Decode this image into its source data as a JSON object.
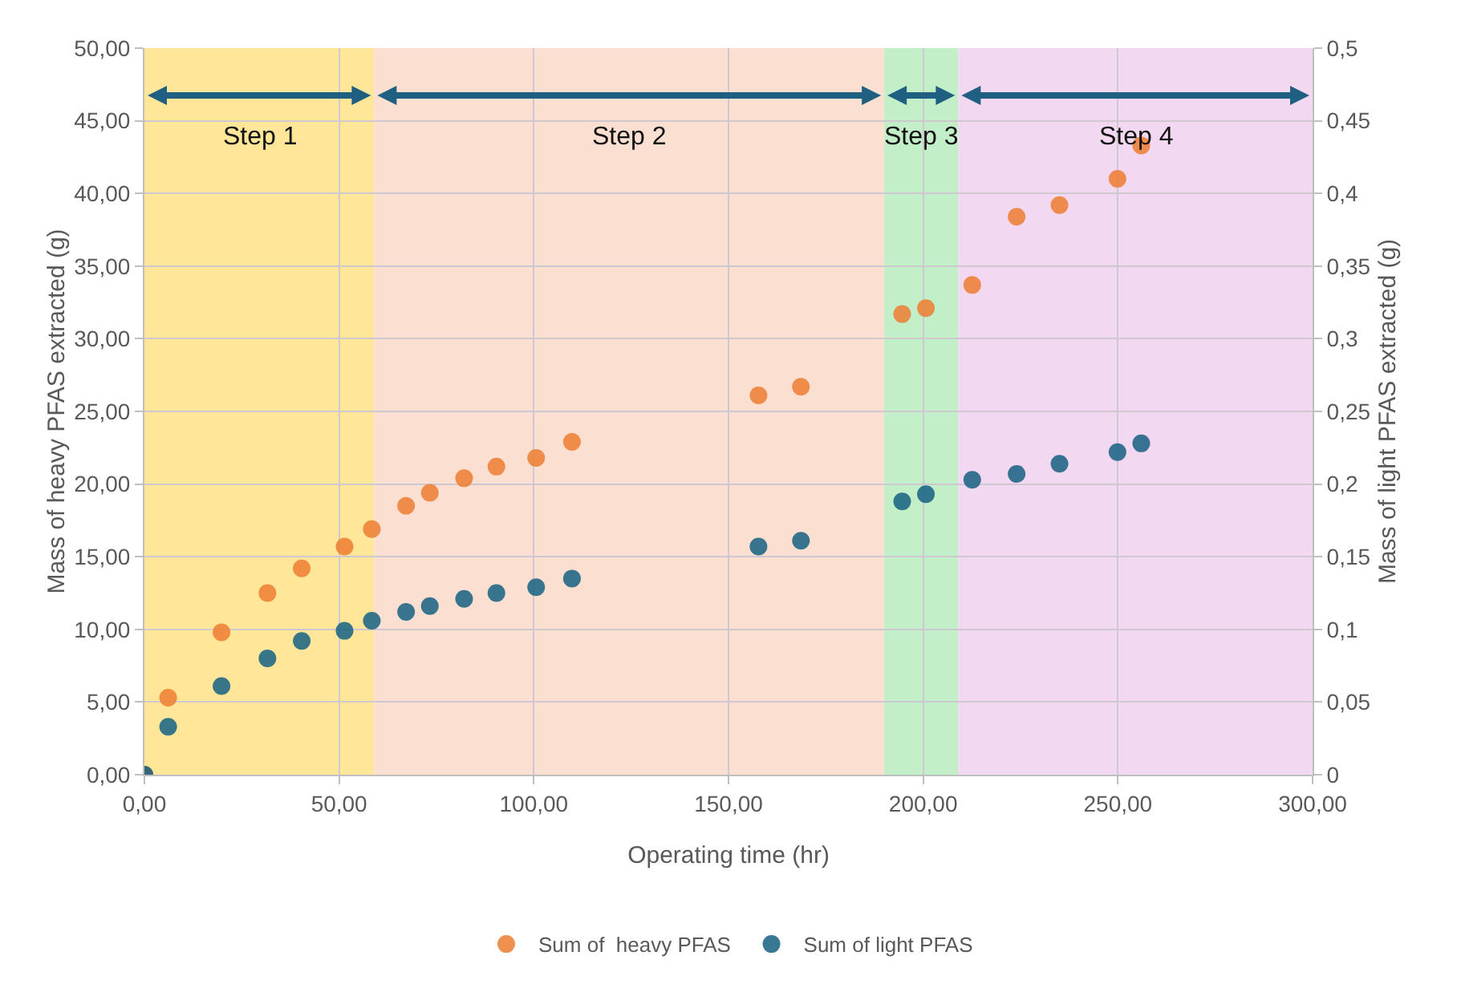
{
  "chart_data": {
    "type": "scatter",
    "xlabel": "Operating time (hr)",
    "ylabel": "Mass of heavy PFAS extracted (g)",
    "y2label": "Mass of light PFAS extracted (g)",
    "x": [
      0,
      6.1,
      19.8,
      31.6,
      40.4,
      51.4,
      58.4,
      67.2,
      73.3,
      82.1,
      90.4,
      100.6,
      109.8,
      157.7,
      168.6,
      194.6,
      200.7,
      212.6,
      224,
      235,
      249.9,
      256
    ],
    "series": [
      {
        "name": "Sum of  heavy PFAS",
        "color": "#ed7d31",
        "values": [
          0,
          5.3,
          9.8,
          12.5,
          14.2,
          15.7,
          16.9,
          18.5,
          19.4,
          20.4,
          21.2,
          21.8,
          22.9,
          26.1,
          26.7,
          31.7,
          32.1,
          33.7,
          38.4,
          39.2,
          41.0,
          43.3
        ]
      },
      {
        "name": "Sum of light PFAS",
        "color": "#156082",
        "axis": "y2",
        "values": [
          0,
          0.033,
          0.061,
          0.08,
          0.092,
          0.099,
          0.106,
          0.112,
          0.116,
          0.121,
          0.125,
          0.129,
          0.135,
          0.157,
          0.161,
          0.188,
          0.193,
          0.203,
          0.207,
          0.214,
          0.222,
          0.228
        ]
      }
    ],
    "xlim": [
      0,
      300
    ],
    "xticks": [
      {
        "value": 0,
        "label": "0,00"
      },
      {
        "value": 50,
        "label": "50,00"
      },
      {
        "value": 100,
        "label": "100,00"
      },
      {
        "value": 150,
        "label": "150,00"
      },
      {
        "value": 200,
        "label": "200,00"
      },
      {
        "value": 250,
        "label": "250,00"
      },
      {
        "value": 300,
        "label": "300,00"
      }
    ],
    "ylim": [
      0,
      50
    ],
    "yticks": [
      {
        "value": 0,
        "label": "0,00"
      },
      {
        "value": 5,
        "label": "5,00"
      },
      {
        "value": 10,
        "label": "10,00"
      },
      {
        "value": 15,
        "label": "15,00"
      },
      {
        "value": 20,
        "label": "20,00"
      },
      {
        "value": 25,
        "label": "25,00"
      },
      {
        "value": 30,
        "label": "30,00"
      },
      {
        "value": 35,
        "label": "35,00"
      },
      {
        "value": 40,
        "label": "40,00"
      },
      {
        "value": 45,
        "label": "45,00"
      },
      {
        "value": 50,
        "label": "50,00"
      }
    ],
    "y2lim": [
      0,
      0.5
    ],
    "y2ticks": [
      0,
      {
        "value": 0.05,
        "label": "0,05"
      },
      {
        "value": 0.1,
        "label": "0,1"
      },
      {
        "value": 0.15,
        "label": "0,15"
      },
      {
        "value": 0.2,
        "label": "0,2"
      },
      {
        "value": 0.25,
        "label": "0,25"
      },
      {
        "value": 0.3,
        "label": "0,3"
      },
      {
        "value": 0.35,
        "label": "0,35"
      },
      {
        "value": 0.4,
        "label": "0,4"
      },
      {
        "value": 0.45,
        "label": "0,45"
      },
      {
        "value": 0.5,
        "label": "0,5"
      }
    ],
    "bands": [
      {
        "axis": "x",
        "from": 0,
        "to": 59,
        "label": "Step 1",
        "color": "#ffe699"
      },
      {
        "axis": "x",
        "from": 59,
        "to": 190,
        "label": "Step 2",
        "color": "#fbe0d2"
      },
      {
        "axis": "x",
        "from": 190,
        "to": 209,
        "label": "Step 3",
        "color": "#c2efc8"
      },
      {
        "axis": "x",
        "from": 209,
        "to": 300,
        "label": "Step 4",
        "color": "#f3d8f1"
      }
    ],
    "grid": true,
    "legend": "bottom",
    "marker": "circle"
  }
}
